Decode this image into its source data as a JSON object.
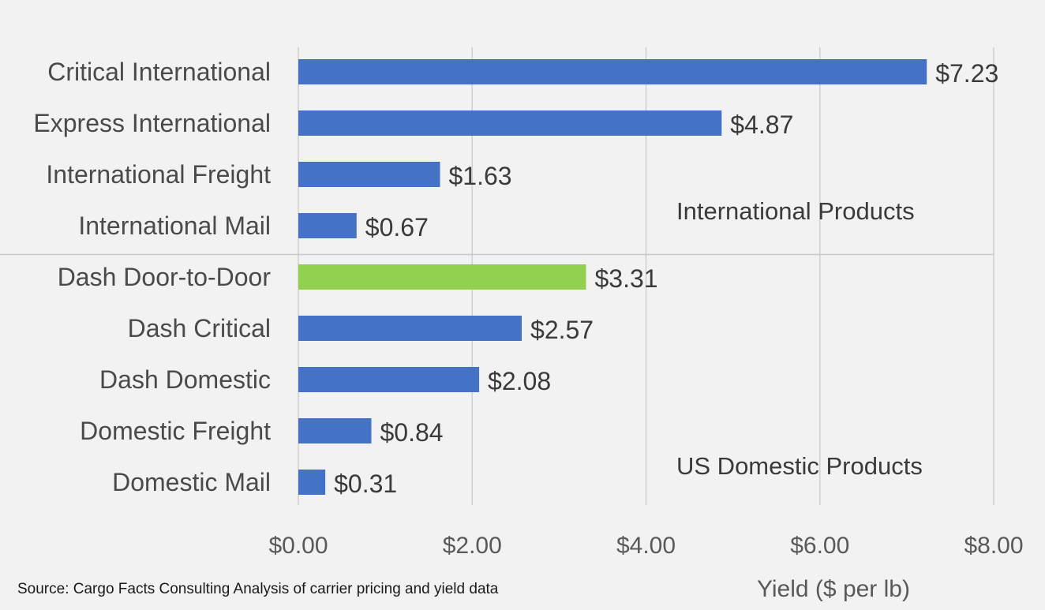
{
  "chart_data": {
    "type": "bar",
    "orientation": "horizontal",
    "categories": [
      "Critical International",
      "Express International",
      "International Freight",
      "International Mail",
      "Dash Door-to-Door",
      "Dash Critical",
      "Dash Domestic",
      "Domestic Freight",
      "Domestic Mail"
    ],
    "values": [
      7.23,
      4.87,
      1.63,
      0.67,
      3.31,
      2.57,
      2.08,
      0.84,
      0.31
    ],
    "value_labels": [
      "$7.23",
      "$4.87",
      "$1.63",
      "$0.67",
      "$3.31",
      "$2.57",
      "$2.08",
      "$0.84",
      "$0.31"
    ],
    "highlight_index": 4,
    "colors": {
      "bar": "#4472c4",
      "highlight": "#92d050",
      "grid": "#d0d0d0",
      "divider": "#c8c8c8",
      "background": "#f2f2f2"
    },
    "xlim": [
      0,
      8
    ],
    "xticks": [
      0,
      2,
      4,
      6,
      8
    ],
    "xtick_labels": [
      "$0.00",
      "$2.00",
      "$4.00",
      "$6.00",
      "$8.00"
    ],
    "xlabel": "Yield ($ per lb)",
    "ylabel": "",
    "title": "",
    "grid": true,
    "groups": [
      {
        "label": "International Products",
        "start": 0,
        "end": 3
      },
      {
        "label": "US Domestic Products",
        "start": 4,
        "end": 8
      }
    ]
  },
  "source_note": "Source: Cargo Facts Consulting Analysis of carrier pricing and yield data"
}
